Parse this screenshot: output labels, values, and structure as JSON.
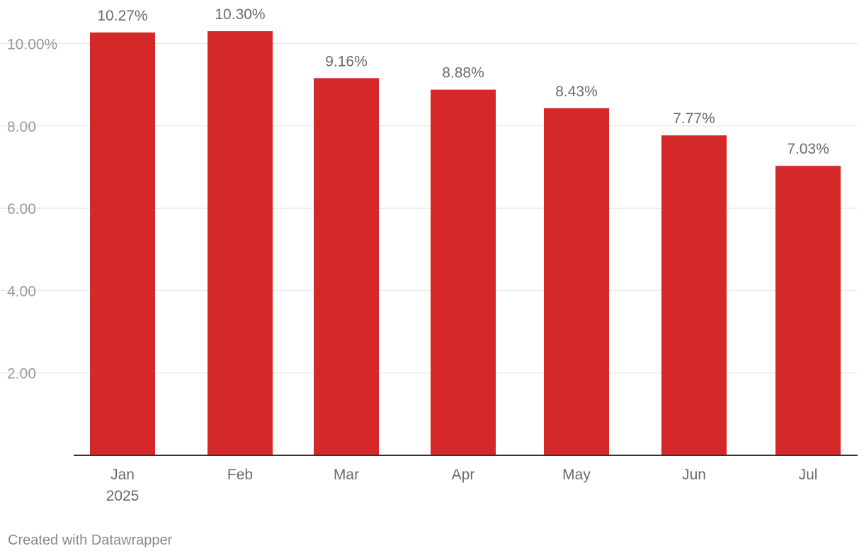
{
  "chart_data": {
    "type": "bar",
    "categories": [
      "Jan",
      "Feb",
      "Mar",
      "Apr",
      "May",
      "Jun",
      "Jul"
    ],
    "category_sublabels": [
      "2025",
      "",
      "",
      "",
      "",
      "",
      ""
    ],
    "values": [
      10.27,
      10.3,
      9.16,
      8.88,
      8.43,
      7.77,
      7.03
    ],
    "value_labels": [
      "10.27%",
      "10.30%",
      "9.16%",
      "8.88%",
      "8.43%",
      "7.77%",
      "7.03%"
    ],
    "y_ticks": [
      2,
      4,
      6,
      8,
      10
    ],
    "y_tick_labels": [
      "2.00",
      "4.00",
      "6.00",
      "8.00",
      "10.00%"
    ],
    "ylim": [
      0,
      10.3
    ],
    "title": "",
    "xlabel": "",
    "ylabel": "",
    "grid": true,
    "legend": "none",
    "colors": {
      "bar": "#d52829",
      "grid": "#e3e3e3",
      "baseline": "#333333"
    }
  },
  "footer": {
    "credit": "Created with Datawrapper"
  }
}
